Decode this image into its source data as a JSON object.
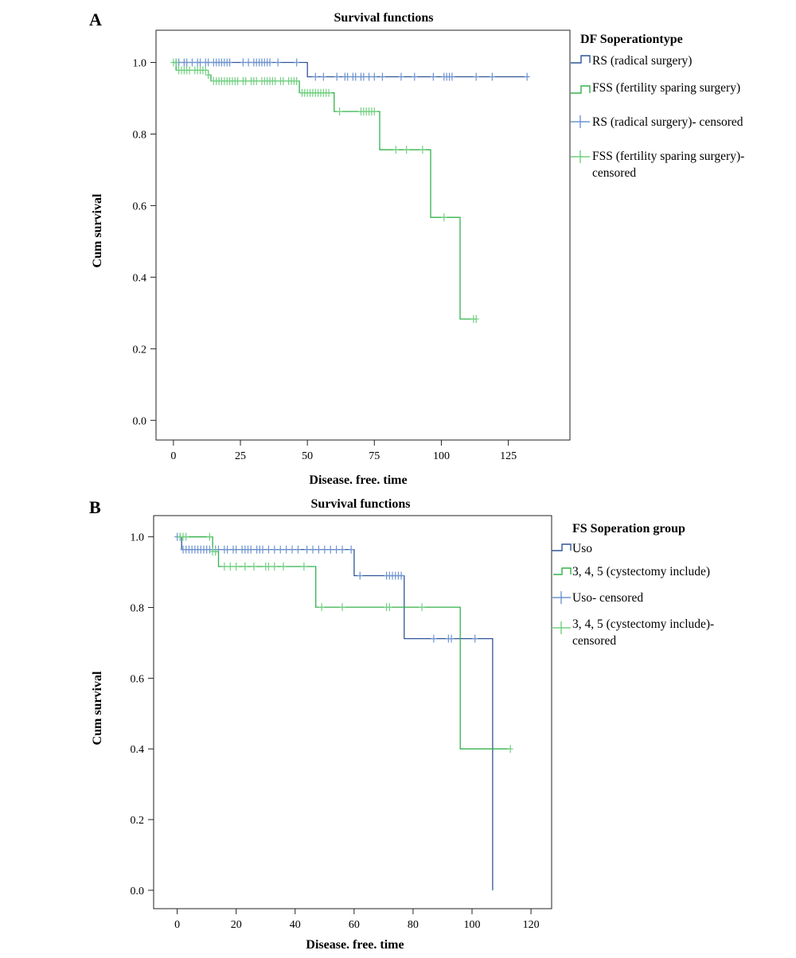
{
  "colors": {
    "rs": "#2f5597",
    "fss": "#33b24a",
    "rs_censored": "#6f94d0",
    "fss_censored": "#70d080"
  },
  "chart_data": [
    {
      "panel": "A",
      "type": "line",
      "title": "Survival functions",
      "xlabel": "Disease. free. time",
      "ylabel": "Cum survival",
      "xlim": [
        -6.5,
        148
      ],
      "ylim": [
        -0.055,
        1.09
      ],
      "xticks": [
        0,
        25,
        50,
        75,
        100,
        125
      ],
      "yticks": [
        "0.0",
        "0.2",
        "0.4",
        "0.6",
        "0.8",
        "1.0"
      ],
      "legend_title": "DF Soperationtype",
      "legend": [
        "RS (radical surgery)",
        "FSS (fertility sparing surgery)",
        "RS (radical surgery)- censored",
        [
          "FSS (fertility sparing surgery)-",
          "censored"
        ]
      ],
      "series": [
        {
          "name": "RS (radical surgery)",
          "color": "#2f5597",
          "steps": [
            [
              0,
              1.0
            ],
            [
              50,
              0.96
            ],
            [
              133,
              0.96
            ]
          ],
          "censored": [
            [
              1,
              1.0
            ],
            [
              2,
              1.0
            ],
            [
              4,
              1.0
            ],
            [
              5,
              1.0
            ],
            [
              7,
              1.0
            ],
            [
              9,
              1.0
            ],
            [
              10,
              1.0
            ],
            [
              12,
              1.0
            ],
            [
              13,
              1.0
            ],
            [
              15,
              1.0
            ],
            [
              16,
              1.0
            ],
            [
              17,
              1.0
            ],
            [
              18,
              1.0
            ],
            [
              19,
              1.0
            ],
            [
              20,
              1.0
            ],
            [
              21,
              1.0
            ],
            [
              26,
              1.0
            ],
            [
              28,
              1.0
            ],
            [
              30,
              1.0
            ],
            [
              31,
              1.0
            ],
            [
              32,
              1.0
            ],
            [
              33,
              1.0
            ],
            [
              34,
              1.0
            ],
            [
              35,
              1.0
            ],
            [
              36,
              1.0
            ],
            [
              39,
              1.0
            ],
            [
              46,
              1.0
            ],
            [
              53,
              0.96
            ],
            [
              56,
              0.96
            ],
            [
              61,
              0.96
            ],
            [
              64,
              0.96
            ],
            [
              65,
              0.96
            ],
            [
              67,
              0.96
            ],
            [
              68,
              0.96
            ],
            [
              70,
              0.96
            ],
            [
              71,
              0.96
            ],
            [
              73,
              0.96
            ],
            [
              75,
              0.96
            ],
            [
              78,
              0.96
            ],
            [
              85,
              0.96
            ],
            [
              90,
              0.96
            ],
            [
              97,
              0.96
            ],
            [
              101,
              0.96
            ],
            [
              102,
              0.96
            ],
            [
              103,
              0.96
            ],
            [
              104,
              0.96
            ],
            [
              113,
              0.96
            ],
            [
              119,
              0.96
            ],
            [
              132,
              0.96
            ]
          ]
        },
        {
          "name": "FSS (fertility sparing surgery)",
          "color": "#33b24a",
          "steps": [
            [
              0,
              1.0
            ],
            [
              1,
              0.978
            ],
            [
              13,
              0.965
            ],
            [
              14,
              0.948
            ],
            [
              47,
              0.915
            ],
            [
              60,
              0.863
            ],
            [
              77,
              0.756
            ],
            [
              96,
              0.567
            ],
            [
              107,
              0.283
            ],
            [
              113,
              0.283
            ]
          ],
          "censored": [
            [
              0,
              1.0
            ],
            [
              1,
              1.0
            ],
            [
              2,
              0.978
            ],
            [
              3,
              0.978
            ],
            [
              4,
              0.978
            ],
            [
              5,
              0.978
            ],
            [
              6,
              0.978
            ],
            [
              8,
              0.978
            ],
            [
              9,
              0.978
            ],
            [
              10,
              0.978
            ],
            [
              11,
              0.978
            ],
            [
              12,
              0.978
            ],
            [
              13,
              0.965
            ],
            [
              15,
              0.948
            ],
            [
              16,
              0.948
            ],
            [
              17,
              0.948
            ],
            [
              18,
              0.948
            ],
            [
              19,
              0.948
            ],
            [
              20,
              0.948
            ],
            [
              21,
              0.948
            ],
            [
              22,
              0.948
            ],
            [
              23,
              0.948
            ],
            [
              24,
              0.948
            ],
            [
              26,
              0.948
            ],
            [
              27,
              0.948
            ],
            [
              29,
              0.948
            ],
            [
              30,
              0.948
            ],
            [
              31,
              0.948
            ],
            [
              33,
              0.948
            ],
            [
              34,
              0.948
            ],
            [
              35,
              0.948
            ],
            [
              36,
              0.948
            ],
            [
              37,
              0.948
            ],
            [
              38,
              0.948
            ],
            [
              40,
              0.948
            ],
            [
              41,
              0.948
            ],
            [
              43,
              0.948
            ],
            [
              44,
              0.948
            ],
            [
              45,
              0.948
            ],
            [
              46,
              0.948
            ],
            [
              48,
              0.915
            ],
            [
              49,
              0.915
            ],
            [
              50,
              0.915
            ],
            [
              51,
              0.915
            ],
            [
              52,
              0.915
            ],
            [
              53,
              0.915
            ],
            [
              54,
              0.915
            ],
            [
              55,
              0.915
            ],
            [
              56,
              0.915
            ],
            [
              57,
              0.915
            ],
            [
              58,
              0.915
            ],
            [
              62,
              0.863
            ],
            [
              70,
              0.863
            ],
            [
              71,
              0.863
            ],
            [
              72,
              0.863
            ],
            [
              73,
              0.863
            ],
            [
              74,
              0.863
            ],
            [
              75,
              0.863
            ],
            [
              83,
              0.756
            ],
            [
              87,
              0.756
            ],
            [
              93,
              0.756
            ],
            [
              101,
              0.567
            ],
            [
              112,
              0.283
            ],
            [
              113,
              0.283
            ]
          ]
        }
      ]
    },
    {
      "panel": "B",
      "type": "line",
      "title": "Survival functions",
      "xlabel": "Disease. free. time",
      "ylabel": "Cum survival",
      "xlim": [
        -8,
        127
      ],
      "ylim": [
        -0.052,
        1.06
      ],
      "xticks": [
        0,
        20,
        40,
        60,
        80,
        100,
        120
      ],
      "yticks": [
        "0.0",
        "0.2",
        "0.4",
        "0.6",
        "0.8",
        "1.0"
      ],
      "legend_title": "FS Soperation group",
      "legend": [
        "Uso",
        "3, 4, 5 (cystectomy include)",
        "Uso- censored",
        [
          "3, 4, 5 (cystectomy include)-",
          "censored"
        ]
      ],
      "series": [
        {
          "name": "Uso",
          "color": "#2f5597",
          "steps": [
            [
              0,
              1.0
            ],
            [
              1.5,
              0.964
            ],
            [
              60,
              0.89
            ],
            [
              77,
              0.712
            ],
            [
              107,
              0.0
            ]
          ],
          "censored": [
            [
              0,
              1.0
            ],
            [
              1,
              1.0
            ],
            [
              2,
              0.964
            ],
            [
              3,
              0.964
            ],
            [
              4,
              0.964
            ],
            [
              5,
              0.964
            ],
            [
              6,
              0.964
            ],
            [
              7,
              0.964
            ],
            [
              8,
              0.964
            ],
            [
              9,
              0.964
            ],
            [
              10,
              0.964
            ],
            [
              11,
              0.964
            ],
            [
              13,
              0.964
            ],
            [
              14,
              0.964
            ],
            [
              16,
              0.964
            ],
            [
              17,
              0.964
            ],
            [
              19,
              0.964
            ],
            [
              20,
              0.964
            ],
            [
              22,
              0.964
            ],
            [
              23,
              0.964
            ],
            [
              24,
              0.964
            ],
            [
              25,
              0.964
            ],
            [
              27,
              0.964
            ],
            [
              28,
              0.964
            ],
            [
              29,
              0.964
            ],
            [
              31,
              0.964
            ],
            [
              33,
              0.964
            ],
            [
              35,
              0.964
            ],
            [
              37,
              0.964
            ],
            [
              39,
              0.964
            ],
            [
              41,
              0.964
            ],
            [
              44,
              0.964
            ],
            [
              46,
              0.964
            ],
            [
              48,
              0.964
            ],
            [
              50,
              0.964
            ],
            [
              52,
              0.964
            ],
            [
              54,
              0.964
            ],
            [
              56,
              0.964
            ],
            [
              59,
              0.964
            ],
            [
              62,
              0.89
            ],
            [
              71,
              0.89
            ],
            [
              72,
              0.89
            ],
            [
              73,
              0.89
            ],
            [
              74,
              0.89
            ],
            [
              75,
              0.89
            ],
            [
              76,
              0.89
            ],
            [
              87,
              0.712
            ],
            [
              92,
              0.712
            ],
            [
              93,
              0.712
            ],
            [
              101,
              0.712
            ]
          ]
        },
        {
          "name": "3, 4, 5 (cystectomy include)",
          "color": "#33b24a",
          "steps": [
            [
              0,
              1.0
            ],
            [
              12,
              0.958
            ],
            [
              14,
              0.916
            ],
            [
              47,
              0.801
            ],
            [
              96,
              0.4
            ],
            [
              113,
              0.4
            ]
          ],
          "censored": [
            [
              1,
              1.0
            ],
            [
              2,
              1.0
            ],
            [
              3,
              1.0
            ],
            [
              11,
              1.0
            ],
            [
              12,
              0.958
            ],
            [
              13,
              0.958
            ],
            [
              16,
              0.916
            ],
            [
              18,
              0.916
            ],
            [
              20,
              0.916
            ],
            [
              23,
              0.916
            ],
            [
              26,
              0.916
            ],
            [
              30,
              0.916
            ],
            [
              31,
              0.916
            ],
            [
              33,
              0.916
            ],
            [
              36,
              0.916
            ],
            [
              43,
              0.916
            ],
            [
              49,
              0.801
            ],
            [
              56,
              0.801
            ],
            [
              71,
              0.801
            ],
            [
              72,
              0.801
            ],
            [
              83,
              0.801
            ],
            [
              113,
              0.4
            ]
          ]
        }
      ]
    }
  ]
}
